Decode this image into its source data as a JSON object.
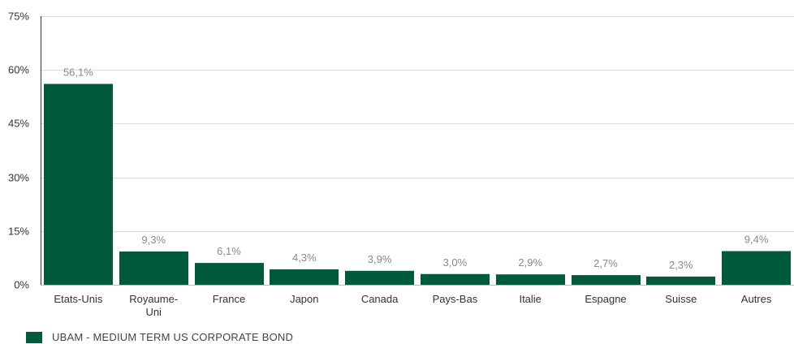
{
  "chart_data": {
    "type": "bar",
    "categories": [
      "Etats-Unis",
      "Royaume-Uni",
      "France",
      "Japon",
      "Canada",
      "Pays-Bas",
      "Italie",
      "Espagne",
      "Suisse",
      "Autres"
    ],
    "category_lines": [
      [
        "Etats-Unis"
      ],
      [
        "Royaume-",
        "Uni"
      ],
      [
        "France"
      ],
      [
        "Japon"
      ],
      [
        "Canada"
      ],
      [
        "Pays-Bas"
      ],
      [
        "Italie"
      ],
      [
        "Espagne"
      ],
      [
        "Suisse"
      ],
      [
        "Autres"
      ]
    ],
    "series": [
      {
        "name": "UBAM - MEDIUM TERM US CORPORATE BOND",
        "values": [
          56.1,
          9.3,
          6.1,
          4.3,
          3.9,
          3.0,
          2.9,
          2.7,
          2.3,
          9.4
        ],
        "value_labels": [
          "56,1%",
          "9,3%",
          "6,1%",
          "4,3%",
          "3,9%",
          "3,0%",
          "2,9%",
          "2,7%",
          "2,3%",
          "9,4%"
        ]
      }
    ],
    "ylim": [
      0,
      75
    ],
    "yticks": [
      0,
      15,
      30,
      45,
      60,
      75
    ],
    "ytick_labels": [
      "0%",
      "15%",
      "30%",
      "45%",
      "60%",
      "75%"
    ],
    "grid": true,
    "legend_position": "bottom-left",
    "bar_color": "#005a3c"
  }
}
